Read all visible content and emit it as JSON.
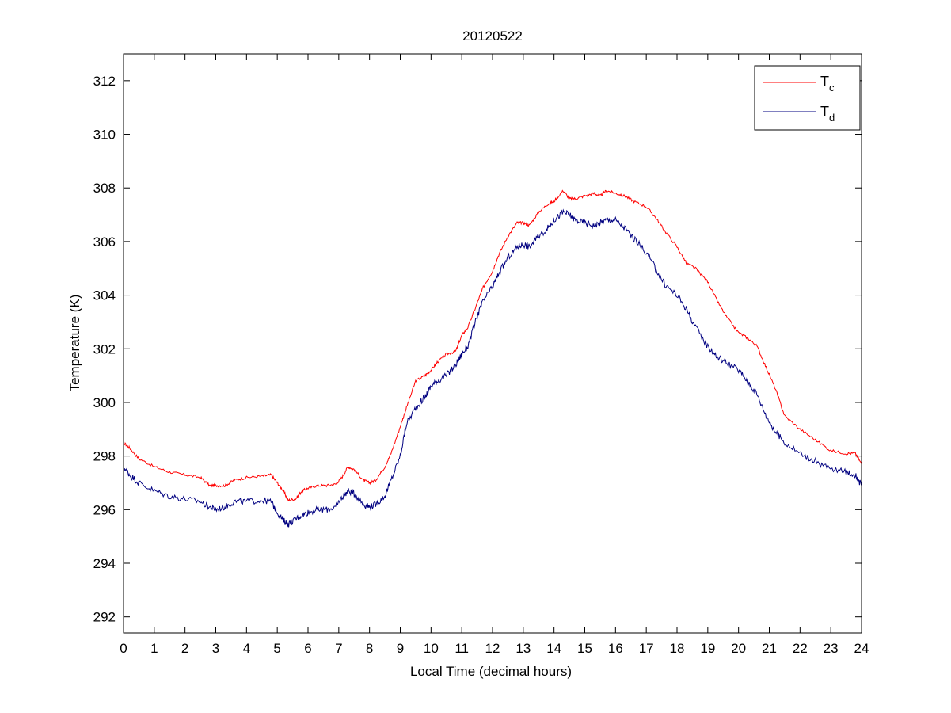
{
  "chart_data": {
    "type": "line",
    "title": "20120522",
    "xlabel": "Local Time (decimal hours)",
    "ylabel": "Temperature (K)",
    "xlim": [
      0,
      24
    ],
    "ylim": [
      291.4,
      313
    ],
    "xticks": [
      0,
      1,
      2,
      3,
      4,
      5,
      6,
      7,
      8,
      9,
      10,
      11,
      12,
      13,
      14,
      15,
      16,
      17,
      18,
      19,
      20,
      21,
      22,
      23,
      24
    ],
    "yticks": [
      292,
      294,
      296,
      298,
      300,
      302,
      304,
      306,
      308,
      310,
      312
    ],
    "grid": false,
    "legend_position": "top-right",
    "series": [
      {
        "name": "T",
        "subscript": "c",
        "color": "#ff0000",
        "x": [
          0,
          0.2,
          0.5,
          1,
          1.5,
          2,
          2.5,
          2.8,
          3,
          3.3,
          3.6,
          4,
          4.5,
          4.8,
          5,
          5.2,
          5.35,
          5.6,
          5.8,
          6,
          6.3,
          6.6,
          6.9,
          7.1,
          7.3,
          7.5,
          7.8,
          8,
          8.2,
          8.5,
          8.7,
          9,
          9.2,
          9.5,
          9.8,
          10,
          10.2,
          10.5,
          10.8,
          11,
          11.2,
          11.5,
          11.7,
          12,
          12.2,
          12.5,
          12.8,
          13,
          13.2,
          13.5,
          13.8,
          14,
          14.3,
          14.5,
          14.7,
          15,
          15.3,
          15.5,
          15.7,
          16,
          16.3,
          16.6,
          17,
          17.3,
          17.6,
          18,
          18.3,
          18.6,
          19,
          19.3,
          19.6,
          20,
          20.3,
          20.6,
          20.9,
          21.2,
          21.5,
          22,
          22.5,
          23,
          23.5,
          23.8,
          24
        ],
        "y": [
          298.5,
          298.3,
          297.9,
          297.6,
          297.4,
          297.3,
          297.2,
          296.9,
          296.9,
          296.9,
          297.1,
          297.2,
          297.25,
          297.3,
          297.0,
          296.7,
          296.35,
          296.4,
          296.7,
          296.8,
          296.9,
          296.9,
          296.95,
          297.2,
          297.6,
          297.5,
          297.1,
          297.0,
          297.1,
          297.6,
          298.1,
          299.1,
          299.8,
          300.8,
          301.0,
          301.2,
          301.5,
          301.8,
          301.9,
          302.5,
          302.8,
          303.7,
          304.3,
          304.9,
          305.5,
          306.2,
          306.7,
          306.7,
          306.6,
          307.1,
          307.4,
          307.5,
          307.9,
          307.6,
          307.6,
          307.7,
          307.8,
          307.7,
          307.9,
          307.8,
          307.7,
          307.5,
          307.3,
          306.9,
          306.4,
          305.8,
          305.2,
          305.0,
          304.5,
          303.8,
          303.2,
          302.6,
          302.4,
          302.1,
          301.3,
          300.5,
          299.5,
          299.0,
          298.6,
          298.2,
          298.1,
          298.1,
          297.7
        ]
      },
      {
        "name": "T",
        "subscript": "d",
        "color": "#000080",
        "x": [
          0,
          0.2,
          0.5,
          1,
          1.5,
          2,
          2.5,
          2.8,
          3,
          3.3,
          3.6,
          4,
          4.5,
          4.8,
          5,
          5.2,
          5.35,
          5.6,
          5.8,
          6,
          6.3,
          6.6,
          6.9,
          7.1,
          7.3,
          7.5,
          7.8,
          8,
          8.2,
          8.5,
          8.7,
          9,
          9.2,
          9.5,
          9.8,
          10,
          10.2,
          10.5,
          10.8,
          11,
          11.2,
          11.5,
          11.7,
          12,
          12.2,
          12.5,
          12.8,
          13,
          13.2,
          13.5,
          13.8,
          14,
          14.3,
          14.5,
          14.7,
          15,
          15.3,
          15.5,
          15.7,
          16,
          16.3,
          16.6,
          17,
          17.3,
          17.6,
          18,
          18.3,
          18.6,
          19,
          19.3,
          19.6,
          20,
          20.3,
          20.6,
          20.9,
          21.2,
          21.5,
          22,
          22.5,
          23,
          23.5,
          23.8,
          24
        ],
        "y": [
          297.6,
          297.3,
          297.0,
          296.7,
          296.5,
          296.4,
          296.3,
          296.1,
          296.0,
          296.1,
          296.3,
          296.3,
          296.35,
          296.3,
          295.9,
          295.6,
          295.45,
          295.65,
          295.8,
          295.9,
          296.0,
          296.0,
          296.1,
          296.45,
          296.7,
          296.6,
          296.2,
          296.1,
          296.2,
          296.5,
          297.1,
          298.0,
          299.2,
          299.8,
          300.2,
          300.6,
          300.8,
          301.0,
          301.4,
          301.8,
          302.1,
          303.2,
          303.8,
          304.3,
          304.8,
          305.4,
          305.8,
          305.9,
          305.8,
          306.2,
          306.5,
          306.8,
          307.1,
          307.0,
          306.8,
          306.7,
          306.6,
          306.7,
          306.8,
          306.8,
          306.5,
          306.1,
          305.6,
          305.0,
          304.4,
          304.0,
          303.5,
          302.8,
          302.1,
          301.7,
          301.5,
          301.2,
          300.8,
          300.3,
          299.5,
          298.9,
          298.5,
          298.1,
          297.8,
          297.5,
          297.4,
          297.3,
          296.9
        ]
      }
    ]
  }
}
